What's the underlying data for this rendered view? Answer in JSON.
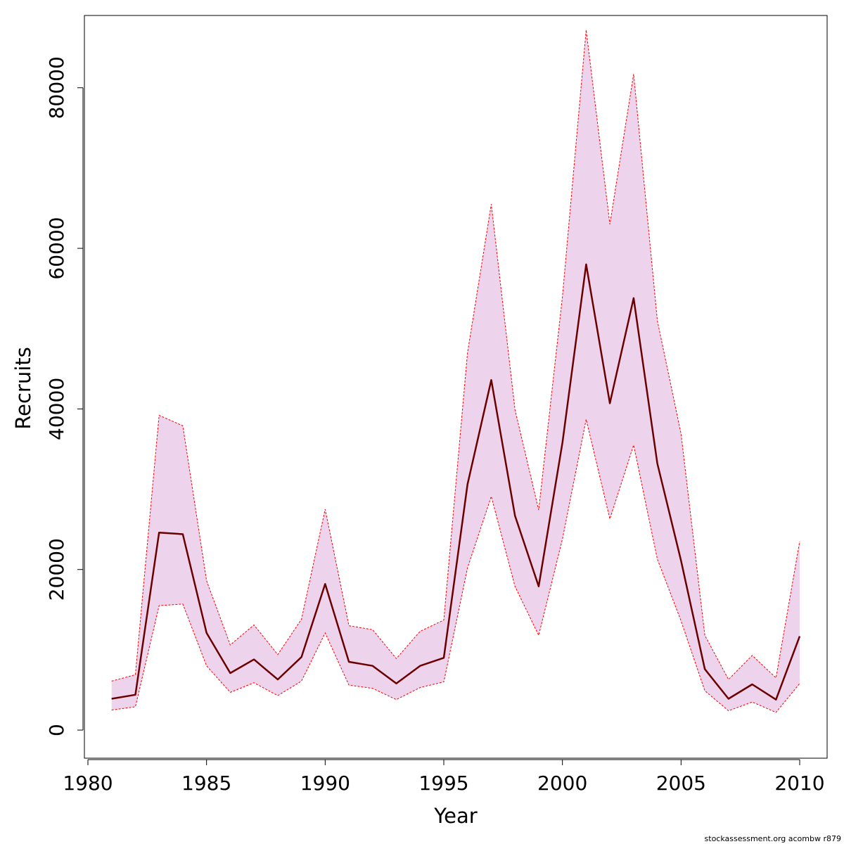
{
  "chart_data": {
    "type": "line",
    "title": "",
    "xlabel": "Year",
    "ylabel": "Recruits",
    "xlim": [
      1980,
      2010
    ],
    "ylim": [
      -3500,
      89000
    ],
    "x_ticks": [
      1980,
      1985,
      1990,
      1995,
      2000,
      2005,
      2010
    ],
    "y_ticks": [
      0,
      20000,
      40000,
      60000,
      80000
    ],
    "x_tick_labels": [
      "1980",
      "1985",
      "1990",
      "1995",
      "2000",
      "2005",
      "2010"
    ],
    "y_tick_labels": [
      "0",
      "20000",
      "40000",
      "60000",
      "80000"
    ],
    "grid": false,
    "legend": "none",
    "x": [
      1981,
      1982,
      1983,
      1984,
      1985,
      1986,
      1987,
      1988,
      1989,
      1990,
      1991,
      1992,
      1993,
      1994,
      1995,
      1996,
      1997,
      1998,
      1999,
      2000,
      2001,
      2002,
      2003,
      2004,
      2005,
      2006,
      2007,
      2008,
      2009,
      2010
    ],
    "series": [
      {
        "role": "estimate",
        "values": [
          3900,
          4400,
          24600,
          24400,
          12100,
          7100,
          8800,
          6300,
          9100,
          18200,
          8500,
          8000,
          5800,
          8000,
          9000,
          30600,
          43600,
          26700,
          17900,
          35800,
          58000,
          40700,
          53800,
          33200,
          21100,
          7600,
          3900,
          5700,
          3800,
          11700
        ],
        "color": "#6b0000"
      },
      {
        "role": "upper",
        "values": [
          6100,
          6900,
          39200,
          37900,
          18600,
          10600,
          13100,
          9400,
          13800,
          27500,
          13000,
          12500,
          8900,
          12300,
          13700,
          47000,
          65500,
          39900,
          27400,
          54000,
          87200,
          63000,
          81700,
          51000,
          36900,
          11800,
          6300,
          9300,
          6500,
          23500
        ],
        "color": "#ff0000"
      },
      {
        "role": "lower",
        "values": [
          2500,
          2900,
          15500,
          15700,
          8000,
          4700,
          5900,
          4300,
          6100,
          12100,
          5600,
          5200,
          3800,
          5300,
          6000,
          20200,
          29100,
          17900,
          11800,
          23800,
          38700,
          26300,
          35500,
          21300,
          13600,
          4900,
          2400,
          3500,
          2200,
          5800
        ],
        "color": "#ff0000"
      }
    ],
    "band_fill": "#eed3ec"
  },
  "footer": {
    "credit": "stockassessment.org acombw r879"
  }
}
